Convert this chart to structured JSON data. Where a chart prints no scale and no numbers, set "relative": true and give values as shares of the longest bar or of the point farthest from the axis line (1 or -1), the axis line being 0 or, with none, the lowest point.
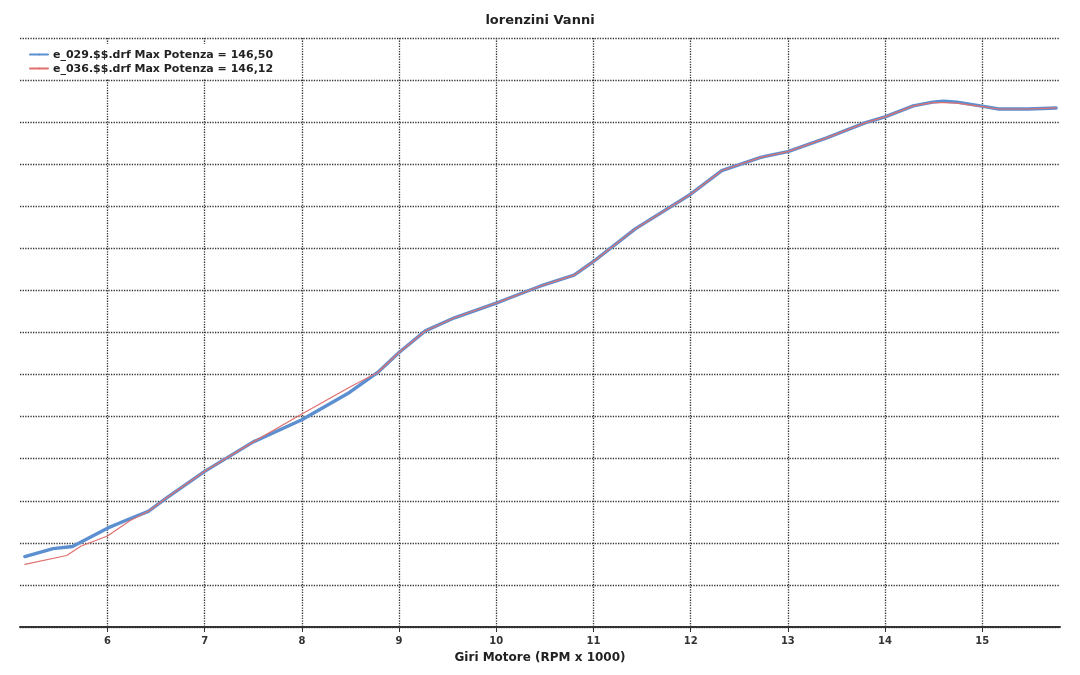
{
  "chart_data": {
    "type": "line",
    "title": "lorenzini Vanni",
    "xlabel": "Giri Motore (RPM x 1000)",
    "relative": true,
    "xlim": [
      5.1,
      15.8
    ],
    "xticks": [
      6,
      7,
      8,
      9,
      10,
      11,
      12,
      13,
      14,
      15
    ],
    "grid": true,
    "legend": "top left",
    "marker": "none",
    "line_style": "solid",
    "series": [
      {
        "name": "e_029.$$.drf Max Potenza = 146,50",
        "color": "#5b8fd0",
        "x": [
          5.15,
          5.44,
          5.64,
          6,
          6.18,
          6.42,
          6.62,
          7,
          7.5,
          8,
          8.49,
          8.78,
          9,
          9.27,
          9.57,
          10,
          10.45,
          10.8,
          11,
          11.43,
          12,
          12.32,
          12.72,
          13,
          13.4,
          13.8,
          14,
          14.29,
          14.49,
          14.6,
          14.74,
          14.98,
          15.17,
          15.47,
          15.76
        ],
        "values": [
          0.134,
          0.149,
          0.153,
          0.188,
          0.202,
          0.22,
          0.247,
          0.296,
          0.352,
          0.394,
          0.446,
          0.484,
          0.522,
          0.563,
          0.588,
          0.616,
          0.648,
          0.669,
          0.695,
          0.757,
          0.823,
          0.868,
          0.893,
          0.904,
          0.93,
          0.959,
          0.97,
          0.991,
          0.998,
          1,
          0.998,
          0.991,
          0.985,
          0.985,
          0.987
        ]
      },
      {
        "name": "e_036.$$.drf Max Potenza = 146,12",
        "color": "#e0706f",
        "x": [
          5.15,
          5.58,
          5.73,
          6,
          6.23,
          6.42,
          6.62,
          7,
          7.5,
          8,
          8.49,
          8.78,
          9,
          9.27,
          9.57,
          10,
          10.45,
          10.8,
          11,
          11.43,
          12,
          12.32,
          12.72,
          13,
          13.4,
          13.8,
          14,
          14.29,
          14.49,
          14.6,
          14.74,
          14.98,
          15.17,
          15.47,
          15.76
        ],
        "values": [
          0.119,
          0.136,
          0.154,
          0.173,
          0.202,
          0.22,
          0.247,
          0.296,
          0.352,
          0.405,
          0.456,
          0.484,
          0.522,
          0.563,
          0.588,
          0.616,
          0.648,
          0.669,
          0.695,
          0.757,
          0.823,
          0.868,
          0.893,
          0.904,
          0.93,
          0.959,
          0.97,
          0.991,
          0.997,
          0.997,
          0.996,
          0.99,
          0.985,
          0.985,
          0.987
        ]
      }
    ]
  }
}
